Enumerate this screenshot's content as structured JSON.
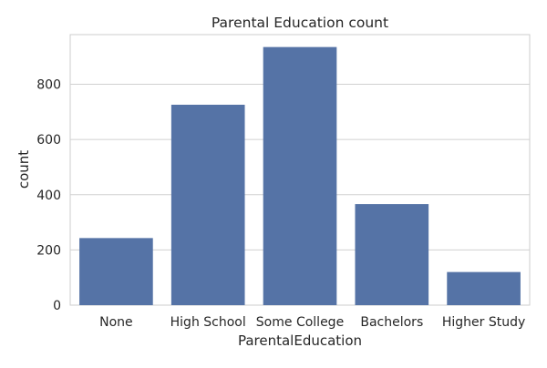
{
  "chart_data": {
    "type": "bar",
    "title": "Parental Education count",
    "xlabel": "ParentalEducation",
    "ylabel": "count",
    "categories": [
      "None",
      "High School",
      "Some College",
      "Bachelors",
      "Higher Study"
    ],
    "values": [
      243,
      726,
      935,
      366,
      120
    ],
    "ylim": [
      0,
      980
    ],
    "yticks": [
      0,
      200,
      400,
      600,
      800
    ],
    "grid": true,
    "bar_color": "#5573a6",
    "grid_color": "#d0d0d0",
    "legend": "none"
  }
}
